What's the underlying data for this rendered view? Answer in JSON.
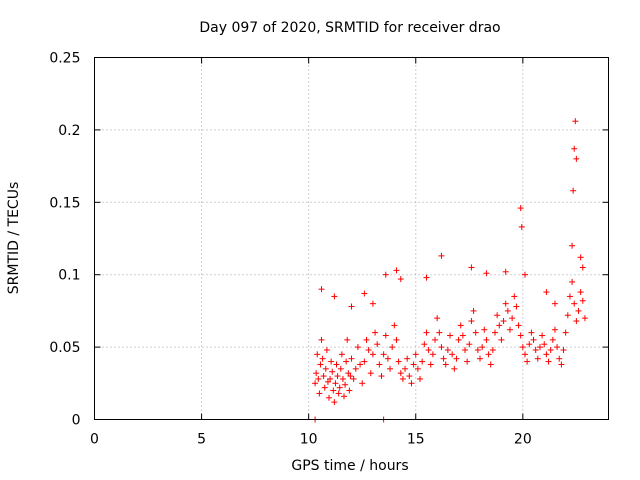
{
  "chart_data": {
    "type": "scatter",
    "title": "Day 097 of 2020, SRMTID for receiver drao",
    "xlabel": "GPS time / hours",
    "ylabel": "SRMTID / TECUs",
    "xlim": [
      0,
      24
    ],
    "ylim": [
      0,
      0.25
    ],
    "xticks": [
      0,
      5,
      10,
      15,
      20
    ],
    "xtick_labels": [
      "0",
      "5",
      "10",
      "15",
      "20"
    ],
    "yticks": [
      0,
      0.05,
      0.1,
      0.15,
      0.2,
      0.25
    ],
    "ytick_labels": [
      "0",
      "0.05",
      "0.1",
      "0.15",
      "0.2",
      "0.25"
    ],
    "grid": true,
    "marker": "+",
    "color": "#ff0000",
    "series": [
      {
        "name": "SRMTID",
        "x": [
          10.3,
          10.35,
          10.4,
          10.45,
          10.5,
          10.55,
          10.6,
          10.65,
          10.7,
          10.75,
          10.8,
          10.85,
          10.9,
          10.95,
          11.0,
          11.05,
          11.1,
          11.15,
          11.2,
          11.25,
          11.3,
          11.35,
          11.4,
          11.45,
          11.5,
          11.55,
          11.6,
          11.65,
          11.7,
          11.75,
          11.8,
          11.85,
          11.9,
          11.95,
          12.0,
          12.1,
          12.2,
          12.3,
          12.4,
          12.5,
          12.6,
          12.7,
          12.8,
          12.9,
          13.0,
          13.1,
          13.2,
          13.3,
          13.4,
          13.5,
          13.6,
          13.7,
          13.8,
          13.9,
          14.0,
          14.1,
          14.2,
          14.3,
          14.4,
          14.5,
          14.6,
          14.7,
          14.8,
          14.9,
          15.0,
          15.1,
          15.2,
          15.3,
          15.4,
          15.5,
          15.6,
          15.7,
          15.8,
          15.9,
          16.0,
          16.1,
          16.2,
          16.3,
          16.4,
          16.5,
          16.6,
          16.7,
          16.8,
          16.9,
          17.0,
          17.1,
          17.2,
          17.3,
          17.4,
          17.5,
          17.6,
          17.7,
          17.8,
          17.9,
          18.0,
          18.1,
          18.2,
          18.3,
          18.4,
          18.5,
          18.6,
          18.7,
          18.8,
          18.9,
          19.0,
          19.1,
          19.2,
          19.3,
          19.4,
          19.5,
          19.6,
          19.7,
          19.8,
          19.9,
          20.0,
          20.1,
          20.2,
          20.3,
          20.4,
          20.5,
          20.6,
          20.7,
          20.8,
          20.9,
          21.0,
          21.1,
          21.2,
          21.3,
          21.4,
          21.5,
          21.6,
          21.7,
          21.8,
          21.9,
          22.0,
          22.1,
          22.2,
          22.3,
          22.4,
          22.5,
          22.6,
          22.7,
          22.8,
          22.9,
          10.3,
          13.5,
          10.6,
          11.2,
          12.0,
          12.6,
          13.0,
          13.6,
          14.1,
          14.3,
          15.5,
          16.2,
          17.6,
          18.3,
          19.2,
          19.9,
          19.95,
          20.1,
          21.1,
          21.5,
          22.3,
          22.35,
          22.4,
          22.45,
          22.5,
          22.7,
          22.8
        ],
        "y": [
          0.025,
          0.032,
          0.045,
          0.028,
          0.018,
          0.038,
          0.055,
          0.042,
          0.03,
          0.022,
          0.035,
          0.048,
          0.026,
          0.015,
          0.028,
          0.04,
          0.033,
          0.02,
          0.012,
          0.025,
          0.038,
          0.03,
          0.018,
          0.022,
          0.035,
          0.045,
          0.028,
          0.016,
          0.024,
          0.04,
          0.055,
          0.032,
          0.02,
          0.03,
          0.042,
          0.028,
          0.035,
          0.05,
          0.038,
          0.025,
          0.04,
          0.055,
          0.048,
          0.032,
          0.045,
          0.06,
          0.052,
          0.038,
          0.03,
          0.045,
          0.058,
          0.042,
          0.035,
          0.05,
          0.065,
          0.055,
          0.04,
          0.032,
          0.028,
          0.035,
          0.042,
          0.03,
          0.025,
          0.038,
          0.045,
          0.035,
          0.028,
          0.04,
          0.052,
          0.06,
          0.048,
          0.038,
          0.045,
          0.055,
          0.07,
          0.06,
          0.05,
          0.042,
          0.038,
          0.048,
          0.058,
          0.045,
          0.035,
          0.042,
          0.055,
          0.065,
          0.058,
          0.048,
          0.04,
          0.052,
          0.068,
          0.075,
          0.06,
          0.048,
          0.042,
          0.05,
          0.062,
          0.055,
          0.045,
          0.038,
          0.048,
          0.06,
          0.072,
          0.065,
          0.055,
          0.068,
          0.08,
          0.075,
          0.062,
          0.07,
          0.085,
          0.078,
          0.065,
          0.058,
          0.05,
          0.045,
          0.04,
          0.052,
          0.06,
          0.055,
          0.048,
          0.042,
          0.05,
          0.058,
          0.052,
          0.045,
          0.04,
          0.048,
          0.055,
          0.062,
          0.05,
          0.042,
          0.038,
          0.048,
          0.06,
          0.072,
          0.085,
          0.095,
          0.08,
          0.068,
          0.075,
          0.088,
          0.082,
          0.07,
          0.0,
          0.0,
          0.09,
          0.085,
          0.078,
          0.087,
          0.08,
          0.1,
          0.103,
          0.097,
          0.098,
          0.113,
          0.105,
          0.101,
          0.102,
          0.146,
          0.133,
          0.1,
          0.088,
          0.08,
          0.12,
          0.158,
          0.187,
          0.206,
          0.18,
          0.112,
          0.105
        ]
      }
    ]
  }
}
